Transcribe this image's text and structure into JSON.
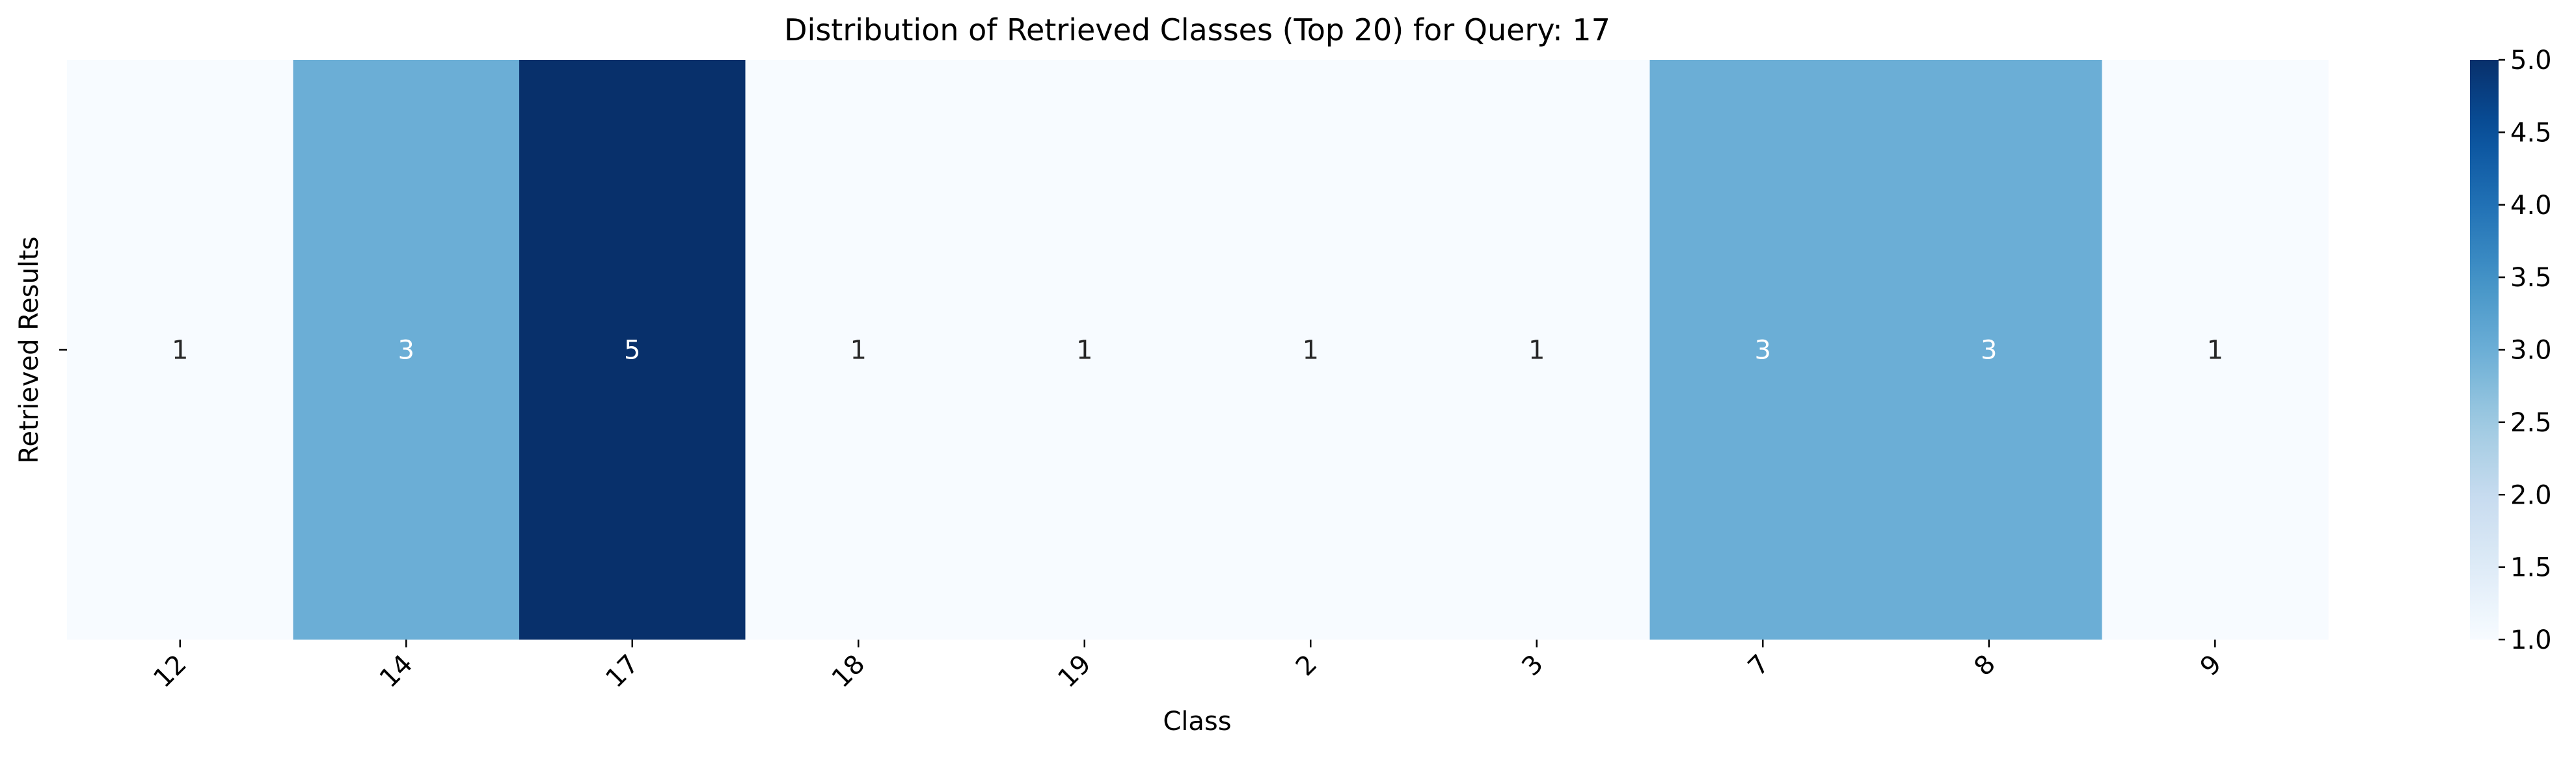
{
  "chart_data": {
    "type": "heatmap",
    "title": "Distribution of Retrieved Classes (Top 20) for Query: 17",
    "xlabel": "Class",
    "ylabel": "Retrieved Results",
    "categories": [
      "12",
      "14",
      "17",
      "18",
      "19",
      "2",
      "3",
      "7",
      "8",
      "9"
    ],
    "values": [
      1,
      3,
      5,
      1,
      1,
      1,
      1,
      3,
      3,
      1
    ],
    "colormap": "Blues",
    "colorbar": {
      "range": [
        1.0,
        5.0
      ],
      "ticks": [
        "1.0",
        "1.5",
        "2.0",
        "2.5",
        "3.0",
        "3.5",
        "4.0",
        "4.5",
        "5.0"
      ]
    },
    "colors": {
      "low": "#f7fbff",
      "mid": "#6badd5",
      "high": "#08306b",
      "label_dark": "#262626",
      "label_light": "#ffffff"
    }
  }
}
